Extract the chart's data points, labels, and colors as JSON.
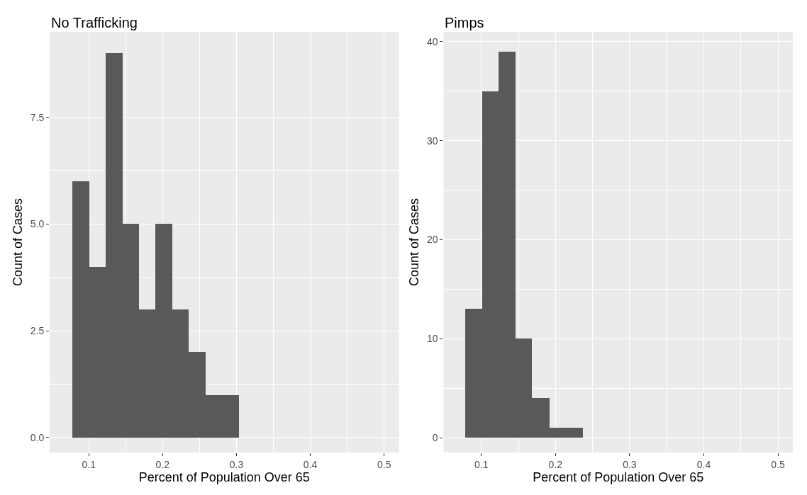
{
  "chart_data": [
    {
      "type": "histogram",
      "title": "No Trafficking",
      "xlabel": "Percent of Population Over 65",
      "ylabel": "Count of Cases",
      "color": "#595959",
      "bins": [
        0.078,
        0.1005,
        0.123,
        0.1455,
        0.168,
        0.1905,
        0.213,
        0.2355,
        0.258,
        0.2805,
        0.303
      ],
      "values": [
        6,
        4,
        9,
        5,
        3,
        5,
        3,
        2,
        1,
        1
      ],
      "xlim": [
        0.047,
        0.52
      ],
      "xticks": [
        0.1,
        0.2,
        0.3,
        0.4,
        0.5
      ],
      "ylim": [
        -0.35,
        9.5
      ],
      "yticks": [
        {
          "value": 0,
          "label": "0.0"
        },
        2.5,
        {
          "value": 5,
          "label": "5.0"
        },
        7.5
      ],
      "grid": true
    },
    {
      "type": "histogram",
      "title": "Pimps",
      "xlabel": "Percent of Population Over 65",
      "ylabel": "Count of Cases",
      "color": "#595959",
      "bins": [
        0.079,
        0.102,
        0.124,
        0.147,
        0.169,
        0.192,
        0.214,
        0.237
      ],
      "values": [
        13,
        35,
        39,
        10,
        4,
        1,
        1
      ],
      "xlim": [
        0.049,
        0.52
      ],
      "xticks": [
        0.1,
        0.2,
        0.3,
        0.4,
        0.5
      ],
      "ylim": [
        -1.5,
        41
      ],
      "yticks": [
        0,
        10,
        20,
        30,
        40
      ],
      "grid": true
    }
  ]
}
